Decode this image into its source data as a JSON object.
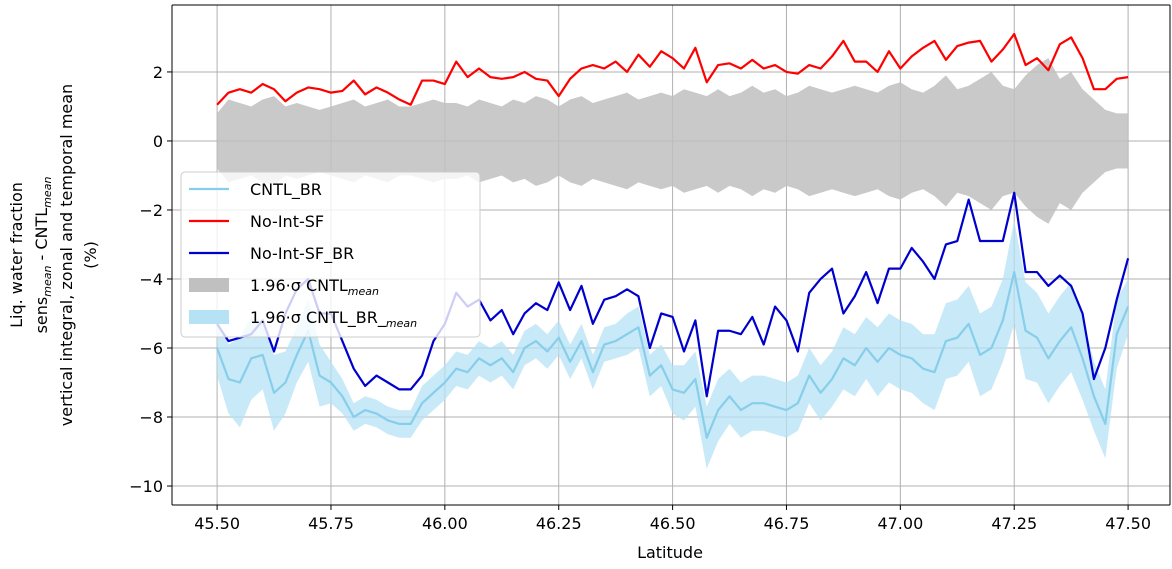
{
  "chart_data": {
    "type": "line",
    "xlabel": "Latitude",
    "ylabel": [
      [
        {
          "text": "Liq. water fraction"
        }
      ],
      [
        {
          "text": "sens",
          "subscript": "mean"
        },
        {
          "text": " - CNTL",
          "subscript": "mean"
        }
      ],
      [
        {
          "text": "vertical integral, zonal and temporal mean"
        }
      ],
      [
        {
          "text": "(%)"
        }
      ]
    ],
    "xlim": [
      45.401,
      47.592
    ],
    "ylim": [
      -10.55,
      3.94
    ],
    "xticks": [
      {
        "value": 45.5,
        "label": "45.50"
      },
      {
        "value": 45.75,
        "label": "45.75"
      },
      {
        "value": 46,
        "label": "46.00"
      },
      {
        "value": 46.25,
        "label": "46.25"
      },
      {
        "value": 46.5,
        "label": "46.50"
      },
      {
        "value": 46.75,
        "label": "46.75"
      },
      {
        "value": 47,
        "label": "47.00"
      },
      {
        "value": 47.25,
        "label": "47.25"
      },
      {
        "value": 47.5,
        "label": "47.50"
      }
    ],
    "yticks": [
      {
        "value": -10,
        "label": "−10"
      },
      {
        "value": -8,
        "label": "−8"
      },
      {
        "value": -6,
        "label": "−6"
      },
      {
        "value": -4,
        "label": "−4"
      },
      {
        "value": -2,
        "label": "−2"
      },
      0,
      2
    ],
    "grid": true,
    "legend": "center left",
    "x": [
      45.5,
      45.525,
      45.55,
      45.575,
      45.6,
      45.625,
      45.65,
      45.675,
      45.7,
      45.725,
      45.75,
      45.775,
      45.8,
      45.825,
      45.85,
      45.875,
      45.9,
      45.925,
      45.95,
      45.975,
      46.0,
      46.025,
      46.05,
      46.075,
      46.1,
      46.125,
      46.15,
      46.175,
      46.2,
      46.225,
      46.25,
      46.275,
      46.3,
      46.325,
      46.35,
      46.375,
      46.4,
      46.425,
      46.45,
      46.475,
      46.5,
      46.525,
      46.55,
      46.575,
      46.6,
      46.625,
      46.65,
      46.675,
      46.7,
      46.725,
      46.75,
      46.775,
      46.8,
      46.825,
      46.85,
      46.875,
      46.9,
      46.925,
      46.95,
      46.975,
      47.0,
      47.025,
      47.05,
      47.075,
      47.1,
      47.125,
      47.15,
      47.175,
      47.2,
      47.225,
      47.25,
      47.275,
      47.3,
      47.325,
      47.35,
      47.375,
      47.4,
      47.425,
      47.45,
      47.475,
      47.5
    ],
    "series": [
      {
        "name": "CNTL_BR",
        "color": "#87ceeb",
        "style": "line",
        "values": [
          -6.0,
          -6.9,
          -7.0,
          -6.3,
          -6.2,
          -7.3,
          -7.0,
          -6.2,
          -5.5,
          -6.8,
          -7.0,
          -7.4,
          -8.0,
          -7.8,
          -7.9,
          -8.1,
          -8.2,
          -8.2,
          -7.6,
          -7.3,
          -7.0,
          -6.6,
          -6.7,
          -6.3,
          -6.5,
          -6.3,
          -6.7,
          -6.0,
          -5.8,
          -6.1,
          -5.7,
          -6.4,
          -5.8,
          -6.7,
          -5.9,
          -5.8,
          -5.6,
          -5.4,
          -6.8,
          -6.5,
          -7.2,
          -7.3,
          -6.9,
          -8.6,
          -7.8,
          -7.4,
          -7.8,
          -7.6,
          -7.6,
          -7.7,
          -7.8,
          -7.6,
          -6.8,
          -7.3,
          -6.9,
          -6.3,
          -6.5,
          -6.0,
          -6.4,
          -6.0,
          -6.2,
          -6.3,
          -6.6,
          -6.7,
          -5.8,
          -5.7,
          -5.3,
          -6.2,
          -6.0,
          -5.2,
          -3.8,
          -5.5,
          -5.7,
          -6.3,
          -5.8,
          -5.4,
          -6.3,
          -7.4,
          -8.2,
          -5.6,
          -4.8
        ]
      },
      {
        "name": "No-Int-SF",
        "color": "#ff0000",
        "style": "line",
        "values": [
          1.05,
          1.4,
          1.5,
          1.4,
          1.65,
          1.5,
          1.15,
          1.4,
          1.55,
          1.5,
          1.4,
          1.45,
          1.75,
          1.35,
          1.55,
          1.4,
          1.2,
          1.05,
          1.75,
          1.75,
          1.65,
          2.3,
          1.85,
          2.1,
          1.85,
          1.8,
          1.85,
          2.0,
          1.8,
          1.75,
          1.3,
          1.8,
          2.1,
          2.2,
          2.1,
          2.3,
          2.0,
          2.5,
          2.15,
          2.6,
          2.4,
          2.1,
          2.7,
          1.7,
          2.2,
          2.25,
          2.1,
          2.35,
          2.1,
          2.2,
          2.0,
          1.95,
          2.2,
          2.1,
          2.45,
          2.9,
          2.3,
          2.3,
          2.0,
          2.6,
          2.1,
          2.45,
          2.7,
          2.9,
          2.35,
          2.75,
          2.85,
          2.9,
          2.3,
          2.65,
          3.1,
          2.2,
          2.4,
          2.05,
          2.8,
          3.0,
          2.4,
          1.5,
          1.5,
          1.8,
          1.85
        ]
      },
      {
        "name": "No-Int-SF_BR",
        "color": "#0000cd",
        "style": "line",
        "values": [
          -5.3,
          -5.8,
          -5.7,
          -5.6,
          -5.2,
          -6.1,
          -5.0,
          -4.3,
          -4.0,
          -5.0,
          -5.0,
          -5.8,
          -6.6,
          -7.1,
          -6.8,
          -7.0,
          -7.2,
          -7.2,
          -6.8,
          -5.8,
          -5.3,
          -4.4,
          -4.8,
          -4.6,
          -5.2,
          -4.9,
          -5.6,
          -5.0,
          -4.7,
          -4.9,
          -4.1,
          -4.9,
          -4.2,
          -5.3,
          -4.6,
          -4.5,
          -4.3,
          -4.5,
          -6.0,
          -5.0,
          -5.1,
          -6.1,
          -5.2,
          -7.4,
          -5.5,
          -5.5,
          -5.6,
          -5.1,
          -5.9,
          -4.8,
          -5.2,
          -6.1,
          -4.4,
          -4.0,
          -3.7,
          -5.0,
          -4.5,
          -3.8,
          -4.7,
          -3.7,
          -3.7,
          -3.1,
          -3.5,
          -4.0,
          -3.0,
          -2.9,
          -1.7,
          -2.9,
          -2.9,
          -2.9,
          -1.5,
          -3.8,
          -3.8,
          -4.2,
          -3.9,
          -4.2,
          -5.0,
          -6.9,
          -6.0,
          -4.6,
          -3.4
        ]
      },
      {
        "name": "1.96·σ CNTL",
        "name_subscript": "mean",
        "color": "#c0c0c0",
        "style": "band",
        "values": [
          0.8,
          1.2,
          1.1,
          1.0,
          1.2,
          1.3,
          1.0,
          1.1,
          1.0,
          0.9,
          1.0,
          1.1,
          1.2,
          1.0,
          1.1,
          1.2,
          1.0,
          1.0,
          1.1,
          1.2,
          1.1,
          1.1,
          1.0,
          1.2,
          1.1,
          1.0,
          1.2,
          1.1,
          1.3,
          1.2,
          1.0,
          1.2,
          1.3,
          1.1,
          1.2,
          1.3,
          1.4,
          1.2,
          1.3,
          1.4,
          1.3,
          1.5,
          1.4,
          1.3,
          1.5,
          1.3,
          1.4,
          1.6,
          1.4,
          1.5,
          1.3,
          1.4,
          1.6,
          1.5,
          1.4,
          1.5,
          1.6,
          1.5,
          1.4,
          1.6,
          1.7,
          1.5,
          1.4,
          1.6,
          1.9,
          1.5,
          1.6,
          1.8,
          2.0,
          1.6,
          1.5,
          1.9,
          2.2,
          2.4,
          1.8,
          2.0,
          1.5,
          1.2,
          0.9,
          0.8,
          0.8
        ]
      },
      {
        "name": "1.96·σ CNTL_BR_",
        "name_subscript": "mean",
        "color": "#b5e2f4",
        "style": "band",
        "center_series": "CNTL_BR",
        "values": [
          0.8,
          1.0,
          1.3,
          1.2,
          1.0,
          1.1,
          0.9,
          0.8,
          0.9,
          0.9,
          0.6,
          0.5,
          0.4,
          0.4,
          0.4,
          0.4,
          0.4,
          0.4,
          0.5,
          0.5,
          0.5,
          0.5,
          0.5,
          0.5,
          0.5,
          0.5,
          0.5,
          0.5,
          0.5,
          0.5,
          0.5,
          0.5,
          0.5,
          0.5,
          0.5,
          0.5,
          0.6,
          0.6,
          0.6,
          0.6,
          0.7,
          0.8,
          0.8,
          0.9,
          0.9,
          0.8,
          0.8,
          0.8,
          0.8,
          0.8,
          0.8,
          0.8,
          0.8,
          0.8,
          0.8,
          0.9,
          0.9,
          0.9,
          1.0,
          1.0,
          1.0,
          1.0,
          1.0,
          1.1,
          1.1,
          1.1,
          1.1,
          1.2,
          1.2,
          1.2,
          1.5,
          1.4,
          1.3,
          1.3,
          1.3,
          1.3,
          1.2,
          1.0,
          1.0,
          1.0,
          0.8
        ]
      }
    ]
  }
}
